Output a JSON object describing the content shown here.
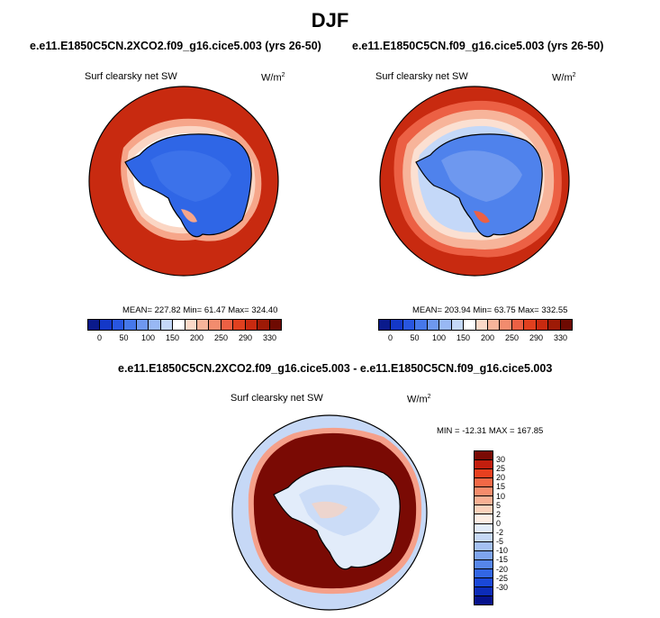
{
  "page_title": "DJF",
  "panels": [
    {
      "case": "e.e11.E1850C5CN.2XCO2.f09_g16.cice5.003 (yrs 26-50)",
      "variable": "Surf clearsky net SW",
      "units": "W/m",
      "units_exp": "2",
      "stats": "MEAN= 227.82  Min=  61.47  Max= 324.40"
    },
    {
      "case": "e.e11.E1850C5CN.f09_g16.cice5.003 (yrs 26-50)",
      "variable": "Surf clearsky net SW",
      "units": "W/m",
      "units_exp": "2",
      "stats": "MEAN= 203.94  Min=  63.75  Max= 332.55"
    }
  ],
  "diff_panel": {
    "title": "e.e11.E1850C5CN.2XCO2.f09_g16.cice5.003 - e.e11.E1850C5CN.f09_g16.cice5.003",
    "variable": "Surf clearsky net SW",
    "units": "W/m",
    "units_exp": "2",
    "stats": "MIN = -12.31  MAX = 167.85"
  },
  "colorbar_abs": {
    "colors": [
      "#0a1a8c",
      "#1438c8",
      "#2856e0",
      "#4678ea",
      "#6e98ef",
      "#98b8f4",
      "#c4d8f8",
      "#ffffff",
      "#fbd9c8",
      "#f7b49a",
      "#f28c6e",
      "#ec6044",
      "#e0401f",
      "#c82a10",
      "#9e1a06",
      "#6e0a02"
    ],
    "tick_labels": [
      "0",
      "50",
      "100",
      "150",
      "200",
      "250",
      "290",
      "330"
    ],
    "tick_positions": [
      1,
      3,
      5,
      7,
      9,
      11,
      13,
      15
    ]
  },
  "colorbar_diff": {
    "colors": [
      "#7a0a04",
      "#c21e0e",
      "#e8401f",
      "#f26846",
      "#f58c6c",
      "#f8b094",
      "#fbd2bc",
      "#fdeee4",
      "#e2ecfa",
      "#c6d8f6",
      "#a4c0f2",
      "#7ea4ee",
      "#5686ea",
      "#3266e4",
      "#1a48d8",
      "#0c2cb8",
      "#06128c"
    ],
    "tick_labels": [
      "30",
      "25",
      "20",
      "15",
      "10",
      "5",
      "2",
      "0",
      "-2",
      "-5",
      "-10",
      "-15",
      "-20",
      "-25",
      "-30"
    ]
  }
}
